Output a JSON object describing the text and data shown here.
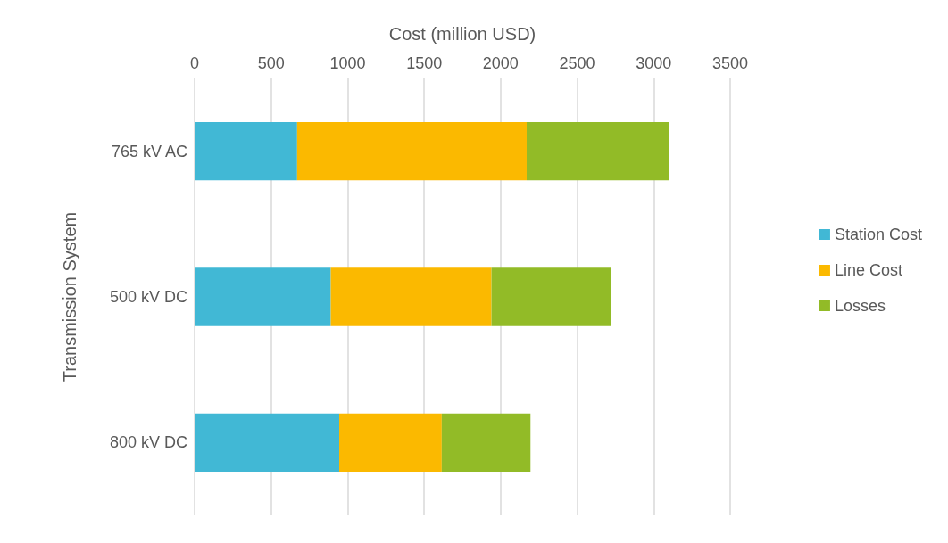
{
  "chart_data": {
    "type": "bar",
    "orientation": "horizontal",
    "stacked": true,
    "xlabel": "Cost (million USD)",
    "ylabel": "Transmission System",
    "categories": [
      "765 kV AC",
      "500 kV DC",
      "800 kV DC"
    ],
    "series": [
      {
        "name": "Station Cost",
        "color": "#41b8d5",
        "values": [
          670,
          890,
          945
        ]
      },
      {
        "name": "Line Cost",
        "color": "#fbb900",
        "values": [
          1500,
          1050,
          670
        ]
      },
      {
        "name": "Losses",
        "color": "#92bb27",
        "values": [
          930,
          780,
          580
        ]
      }
    ],
    "xlim": [
      0,
      3500
    ],
    "xticks": [
      0,
      500,
      1000,
      1500,
      2000,
      2500,
      3000,
      3500
    ],
    "grid": "x",
    "legend": "right"
  }
}
